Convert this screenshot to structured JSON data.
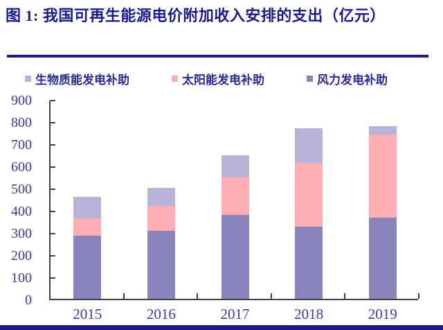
{
  "header": {
    "title": "图 1: 我国可再生能源电价附加收入安排的支出（亿元）"
  },
  "legend": {
    "items": [
      {
        "label": "生物质能发电补助",
        "color": "#b6b2d8"
      },
      {
        "label": "太阳能发电补助",
        "color": "#ffafb3"
      },
      {
        "label": "风力发电补助",
        "color": "#8a84bc"
      }
    ]
  },
  "colors": {
    "navy": "#1a1a8f",
    "axis": "#404040",
    "tick_label": "#3a3aa8",
    "legend_text": "#29299b"
  },
  "chart_data": {
    "type": "bar",
    "stacked": true,
    "title": "我国可再生能源电价附加收入安排的支出（亿元）",
    "categories": [
      "2015",
      "2016",
      "2017",
      "2018",
      "2019"
    ],
    "series": [
      {
        "name": "风力发电补助",
        "color": "#8a84bc",
        "values": [
          285,
          305,
          378,
          325,
          365
        ]
      },
      {
        "name": "太阳能发电补助",
        "color": "#ffafb3",
        "values": [
          78,
          115,
          170,
          287,
          377
        ]
      },
      {
        "name": "生物质能发电补助",
        "color": "#b6b2d8",
        "values": [
          96,
          80,
          100,
          156,
          36
        ]
      }
    ],
    "stack_totals": [
      459,
      500,
      648,
      768,
      778
    ],
    "ylim": [
      0,
      900
    ],
    "ytick_step": 100,
    "grid": false,
    "legend_position": "top",
    "unit": "亿元"
  }
}
